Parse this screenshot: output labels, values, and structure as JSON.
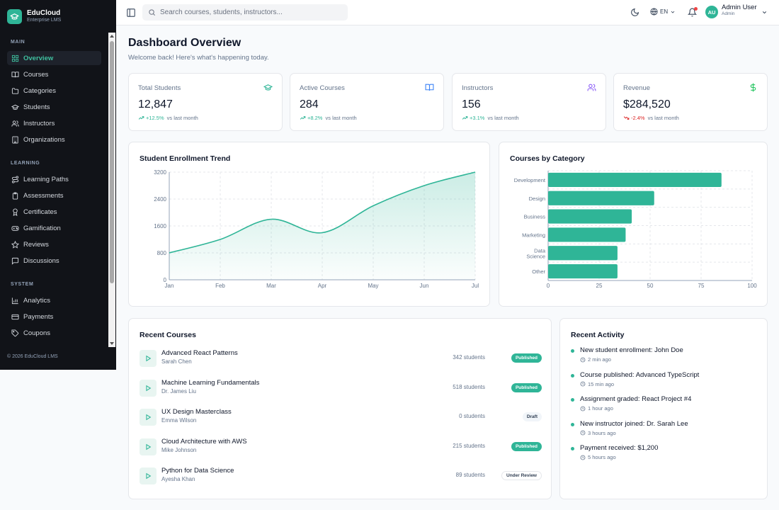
{
  "brand": {
    "name": "EduCloud",
    "subtitle": "Enterprise LMS",
    "accent": "#2fb597"
  },
  "sidebar": {
    "sections": [
      {
        "title": "MAIN",
        "items": [
          {
            "label": "Overview",
            "icon": "grid-icon",
            "active": true
          },
          {
            "label": "Courses",
            "icon": "book-icon"
          },
          {
            "label": "Categories",
            "icon": "folder-icon"
          },
          {
            "label": "Students",
            "icon": "graduation-cap-icon"
          },
          {
            "label": "Instructors",
            "icon": "users-icon"
          },
          {
            "label": "Organizations",
            "icon": "building-icon"
          }
        ]
      },
      {
        "title": "LEARNING",
        "items": [
          {
            "label": "Learning Paths",
            "icon": "route-icon"
          },
          {
            "label": "Assessments",
            "icon": "clipboard-icon"
          },
          {
            "label": "Certificates",
            "icon": "award-icon"
          },
          {
            "label": "Gamification",
            "icon": "gamepad-icon"
          },
          {
            "label": "Reviews",
            "icon": "star-icon"
          },
          {
            "label": "Discussions",
            "icon": "message-icon"
          }
        ]
      },
      {
        "title": "SYSTEM",
        "items": [
          {
            "label": "Analytics",
            "icon": "bar-chart-icon"
          },
          {
            "label": "Payments",
            "icon": "credit-card-icon"
          },
          {
            "label": "Coupons",
            "icon": "tag-icon"
          }
        ]
      }
    ],
    "footer": "© 2026 EduCloud LMS"
  },
  "topbar": {
    "search_placeholder": "Search courses, students, instructors...",
    "language": "EN",
    "user": {
      "initials": "AU",
      "name": "Admin User",
      "role": "Admin"
    }
  },
  "header": {
    "title": "Dashboard Overview",
    "subtitle": "Welcome back! Here's what's happening today."
  },
  "stats": [
    {
      "label": "Total Students",
      "value": "12,847",
      "change": "+12.5%",
      "direction": "up",
      "vs": "vs last month",
      "icon": "graduation-cap-icon",
      "icon_color": "#2fb597"
    },
    {
      "label": "Active Courses",
      "value": "284",
      "change": "+8.2%",
      "direction": "up",
      "vs": "vs last month",
      "icon": "book-open-icon",
      "icon_color": "#3b82f6"
    },
    {
      "label": "Instructors",
      "value": "156",
      "change": "+3.1%",
      "direction": "up",
      "vs": "vs last month",
      "icon": "users-icon",
      "icon_color": "#8b5cf6"
    },
    {
      "label": "Revenue",
      "value": "$284,520",
      "change": "-2.4%",
      "direction": "down",
      "vs": "vs last month",
      "icon": "dollar-icon",
      "icon_color": "#22c55e"
    }
  ],
  "charts": {
    "enrollment": {
      "title": "Student Enrollment Trend",
      "chart_data": {
        "type": "area",
        "categories": [
          "Jan",
          "Feb",
          "Mar",
          "Apr",
          "May",
          "Jun",
          "Jul"
        ],
        "values": [
          800,
          1200,
          1800,
          1400,
          2200,
          2800,
          3200
        ],
        "yticks": [
          "0",
          "800",
          "1600",
          "2400",
          "3200"
        ],
        "ylim": [
          0,
          3200
        ],
        "grid": true,
        "color": "#2fb597"
      }
    },
    "categories": {
      "title": "Courses by Category",
      "chart_data": {
        "type": "bar",
        "orientation": "horizontal",
        "categories": [
          "Development",
          "Design",
          "Business",
          "Marketing",
          "Data Science",
          "Other"
        ],
        "values": [
          85,
          52,
          41,
          38,
          34,
          34
        ],
        "xticks": [
          "0",
          "25",
          "50",
          "75",
          "100"
        ],
        "xlim": [
          0,
          100
        ],
        "grid": true,
        "color": "#2fb597"
      }
    }
  },
  "recent_courses": {
    "title": "Recent Courses",
    "items": [
      {
        "title": "Advanced React Patterns",
        "author": "Sarah Chen",
        "students": "342 students",
        "status": "Published",
        "kind": "published"
      },
      {
        "title": "Machine Learning Fundamentals",
        "author": "Dr. James Liu",
        "students": "518 students",
        "status": "Published",
        "kind": "published"
      },
      {
        "title": "UX Design Masterclass",
        "author": "Emma Wilson",
        "students": "0 students",
        "status": "Draft",
        "kind": "draft"
      },
      {
        "title": "Cloud Architecture with AWS",
        "author": "Mike Johnson",
        "students": "215 students",
        "status": "Published",
        "kind": "published"
      },
      {
        "title": "Python for Data Science",
        "author": "Ayesha Khan",
        "students": "89 students",
        "status": "Under Review",
        "kind": "review"
      }
    ]
  },
  "recent_activity": {
    "title": "Recent Activity",
    "items": [
      {
        "text": "New student enrollment: John Doe",
        "time": "2 min ago"
      },
      {
        "text": "Course published: Advanced TypeScript",
        "time": "15 min ago"
      },
      {
        "text": "Assignment graded: React Project #4",
        "time": "1 hour ago"
      },
      {
        "text": "New instructor joined: Dr. Sarah Lee",
        "time": "3 hours ago"
      },
      {
        "text": "Payment received: $1,200",
        "time": "5 hours ago"
      }
    ]
  }
}
